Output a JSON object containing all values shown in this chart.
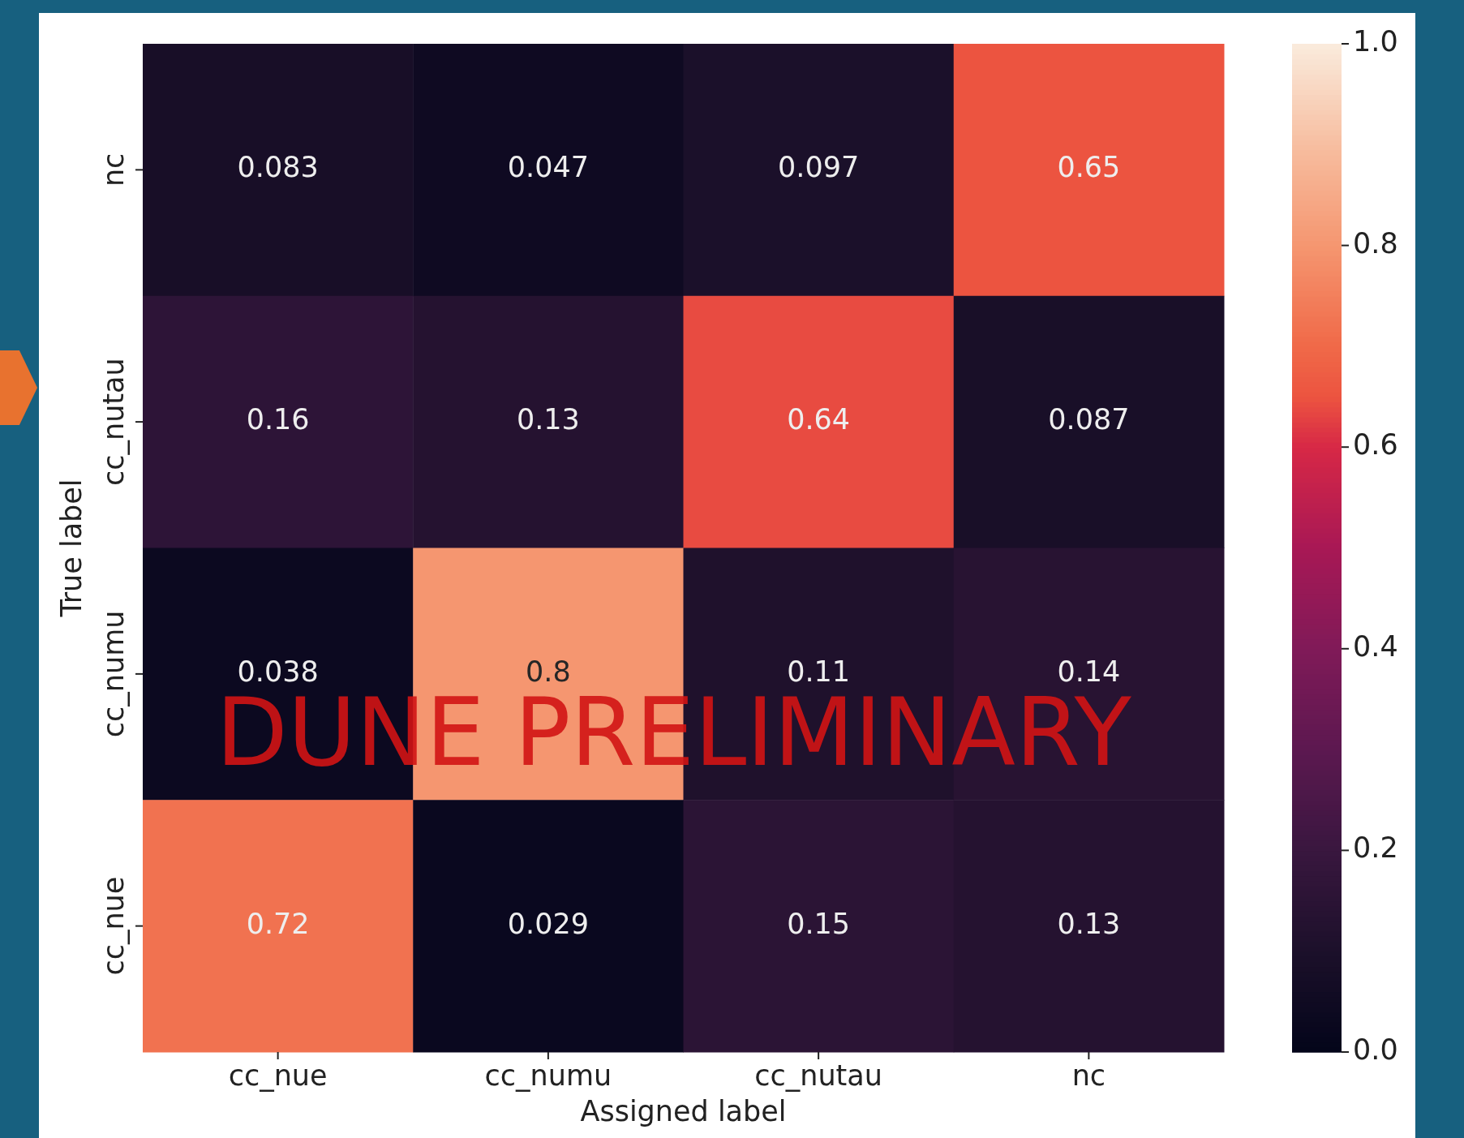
{
  "chart_data": {
    "type": "heatmap",
    "xlabel": "Assigned label",
    "ylabel": "True label",
    "categories": [
      "cc_nue",
      "cc_numu",
      "cc_nutau",
      "nc"
    ],
    "y_categories": [
      "nc",
      "cc_nutau",
      "cc_numu",
      "cc_nue"
    ],
    "cells": [
      [
        0.083,
        0.047,
        0.097,
        0.65
      ],
      [
        0.16,
        0.13,
        0.64,
        0.087
      ],
      [
        0.038,
        0.8,
        0.11,
        0.14
      ],
      [
        0.72,
        0.029,
        0.15,
        0.13
      ]
    ],
    "data_labels": true,
    "clim": [
      0,
      1
    ],
    "cticks": [
      {
        "value": 0,
        "label": "0.0"
      },
      0.2,
      0.4,
      0.6,
      0.8,
      {
        "value": 1,
        "label": "1.0"
      }
    ],
    "annotations": [
      "DUNE PRELIMINARY"
    ]
  }
}
